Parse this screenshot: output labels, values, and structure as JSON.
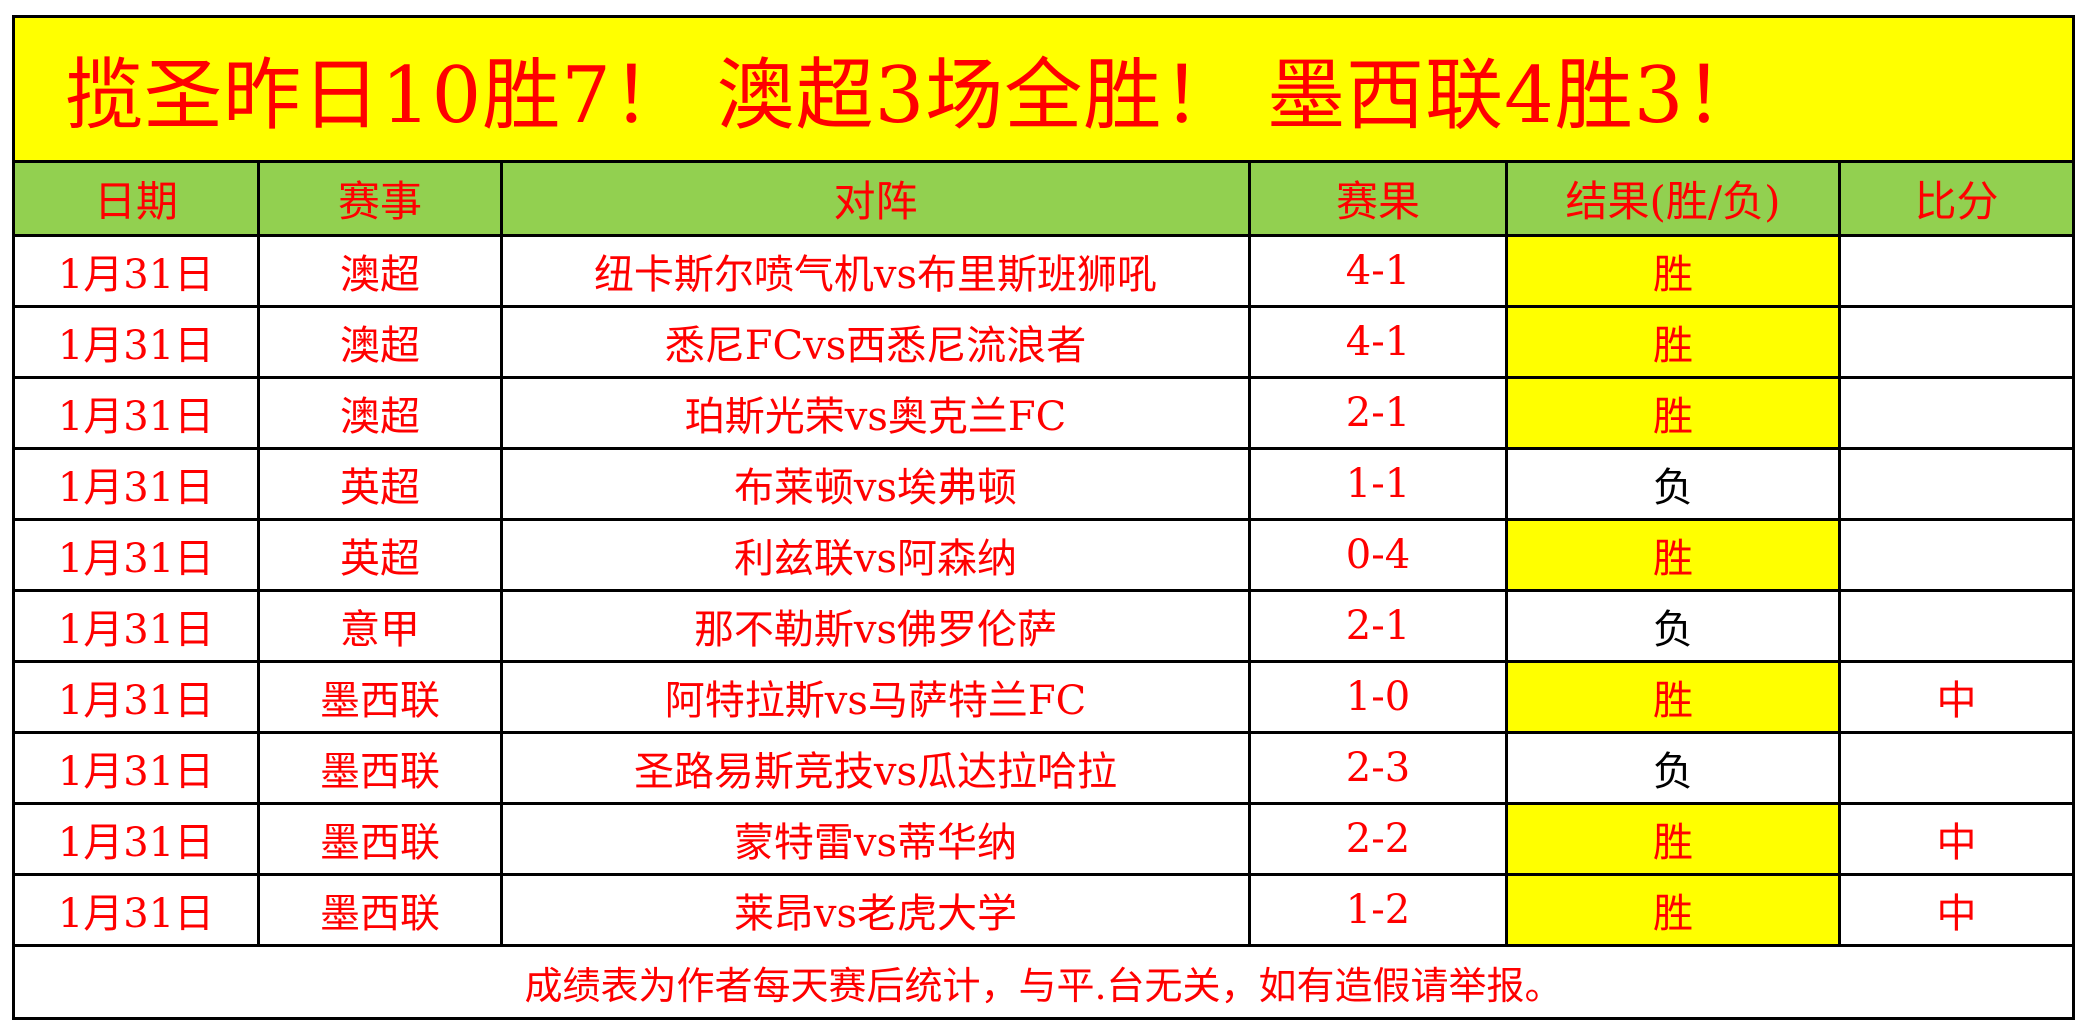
{
  "title": "揽圣昨日10胜7！ 澳超3场全胜！ 墨西联4胜3！",
  "headers": [
    "日期",
    "赛事",
    "对阵",
    "赛果",
    "结果(胜/负)",
    "比分"
  ],
  "rows": [
    {
      "date": "1月31日",
      "league": "澳超",
      "match": "纽卡斯尔喷气机vs布里斯班狮吼",
      "score": "4-1",
      "result": "胜",
      "bifen": ""
    },
    {
      "date": "1月31日",
      "league": "澳超",
      "match": "悉尼FCvs西悉尼流浪者",
      "score": "4-1",
      "result": "胜",
      "bifen": ""
    },
    {
      "date": "1月31日",
      "league": "澳超",
      "match": "珀斯光荣vs奥克兰FC",
      "score": "2-1",
      "result": "胜",
      "bifen": ""
    },
    {
      "date": "1月31日",
      "league": "英超",
      "match": "布莱顿vs埃弗顿",
      "score": "1-1",
      "result": "负",
      "bifen": ""
    },
    {
      "date": "1月31日",
      "league": "英超",
      "match": "利兹联vs阿森纳",
      "score": "0-4",
      "result": "胜",
      "bifen": ""
    },
    {
      "date": "1月31日",
      "league": "意甲",
      "match": "那不勒斯vs佛罗伦萨",
      "score": "2-1",
      "result": "负",
      "bifen": ""
    },
    {
      "date": "1月31日",
      "league": "墨西联",
      "match": "阿特拉斯vs马萨特兰FC",
      "score": "1-0",
      "result": "胜",
      "bifen": "中"
    },
    {
      "date": "1月31日",
      "league": "墨西联",
      "match": "圣路易斯竞技vs瓜达拉哈拉",
      "score": "2-3",
      "result": "负",
      "bifen": ""
    },
    {
      "date": "1月31日",
      "league": "墨西联",
      "match": "蒙特雷vs蒂华纳",
      "score": "2-2",
      "result": "胜",
      "bifen": "中"
    },
    {
      "date": "1月31日",
      "league": "墨西联",
      "match": "莱昂vs老虎大学",
      "score": "1-2",
      "result": "胜",
      "bifen": "中"
    }
  ],
  "footer": "成绩表为作者每天赛后统计，与平.台无关，如有造假请举报。",
  "colors": {
    "title_bg": "#ffff00",
    "header_bg": "#92d050",
    "text": "#ff0000",
    "win_bg": "#ffff00",
    "lose_text": "#000000"
  }
}
